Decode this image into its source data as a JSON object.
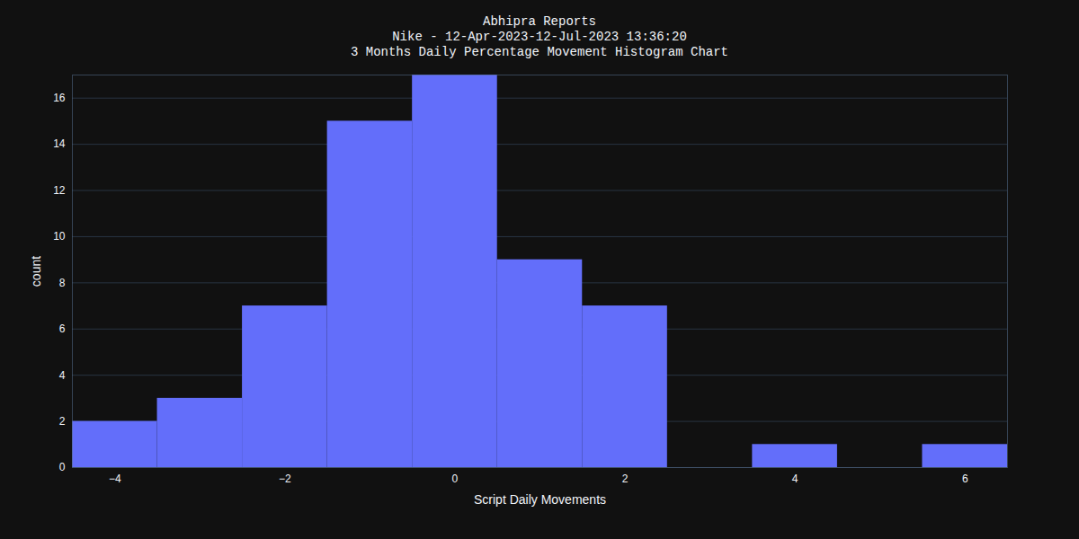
{
  "chart_data": {
    "type": "histogram",
    "title": "Abhipra Reports",
    "subtitle": [
      "Nike - 12-Apr-2023-12-Jul-2023 13:36:20",
      "3 Months Daily Percentage Movement Histogram Chart"
    ],
    "x_label": "Script Daily Movements",
    "y_label": "count",
    "bins": [
      -4.5,
      -3.5,
      -2.5,
      -1.5,
      -0.5,
      0.5,
      1.5,
      2.5,
      3.5,
      4.5,
      5.5,
      6.5
    ],
    "values": [
      2,
      3,
      7,
      15,
      17,
      9,
      7,
      0,
      1,
      0,
      1
    ],
    "color": "#636efa",
    "xlim": [
      -4.5,
      6.5
    ],
    "xticks": [
      {
        "value": -4,
        "label": "−4"
      },
      {
        "value": -2,
        "label": "−2"
      },
      0,
      2,
      4,
      6
    ],
    "ylim": [
      0,
      17
    ],
    "yticks": [
      0,
      2,
      4,
      6,
      8,
      10,
      12,
      14,
      16
    ],
    "grid": true
  }
}
